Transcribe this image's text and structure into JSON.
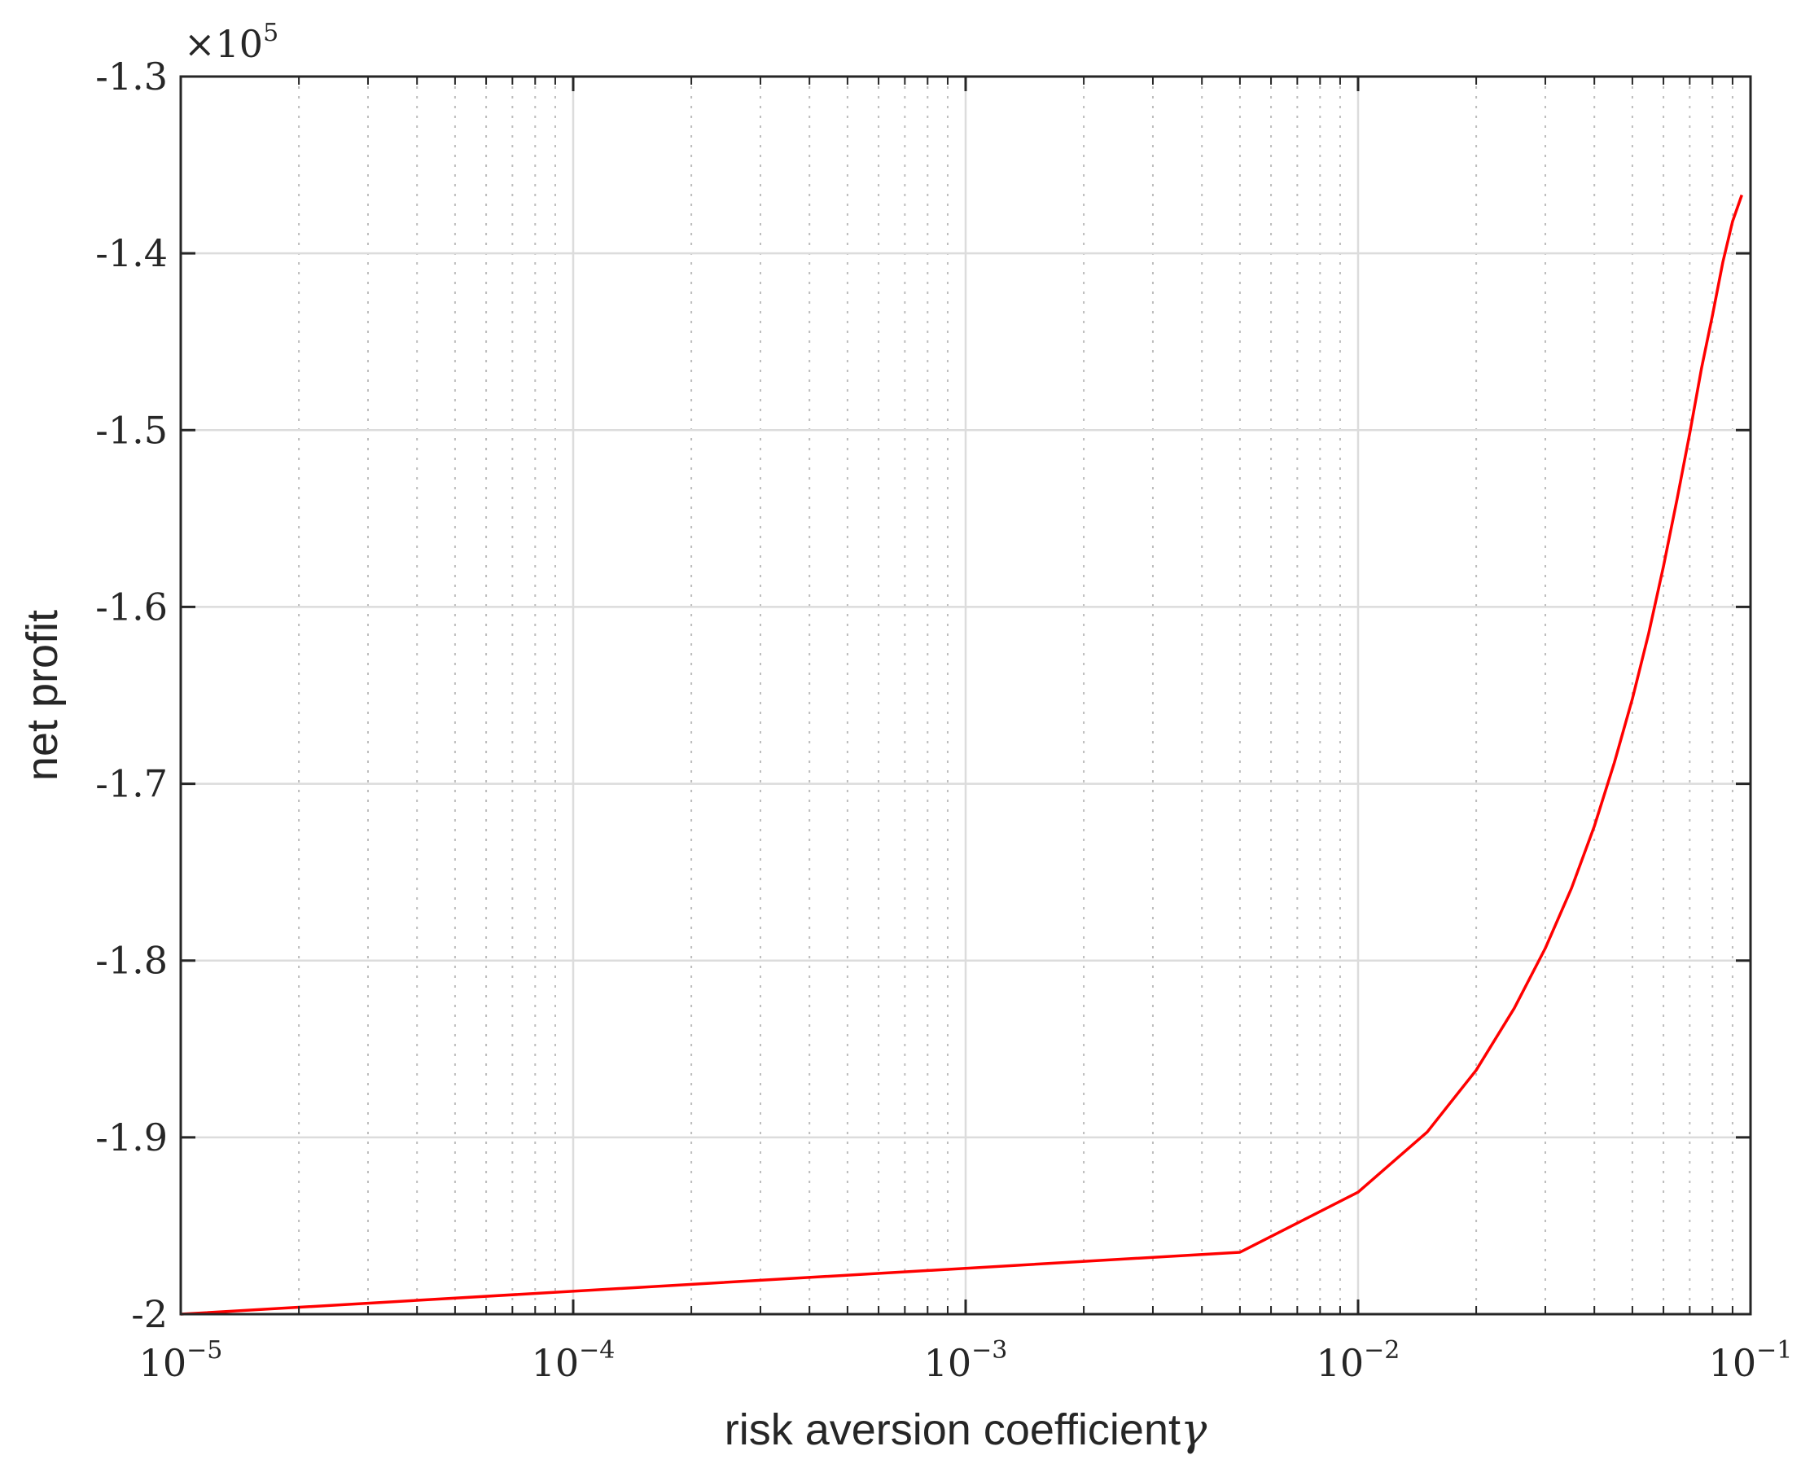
{
  "chart_data": {
    "type": "line",
    "title": "",
    "xlabel": "risk aversion coefficient",
    "xlabel_symbol": "γ",
    "ylabel": "net profit",
    "x_scale": "log",
    "xlim": [
      1e-05,
      0.1
    ],
    "ylim": [
      -200000,
      -130000
    ],
    "y_multiplier_label": "×10",
    "y_multiplier_exponent": "5",
    "x_ticks": [
      {
        "value": 1e-05,
        "base": "10",
        "exp": "−5"
      },
      {
        "value": 0.0001,
        "base": "10",
        "exp": "−4"
      },
      {
        "value": 0.001,
        "base": "10",
        "exp": "−3"
      },
      {
        "value": 0.01,
        "base": "10",
        "exp": "−2"
      },
      {
        "value": 0.1,
        "base": "10",
        "exp": "−1"
      }
    ],
    "y_ticks": [
      {
        "value": -130000,
        "label": "-1.3"
      },
      {
        "value": -140000,
        "label": "-1.4"
      },
      {
        "value": -150000,
        "label": "-1.5"
      },
      {
        "value": -160000,
        "label": "-1.6"
      },
      {
        "value": -170000,
        "label": "-1.7"
      },
      {
        "value": -180000,
        "label": "-1.8"
      },
      {
        "value": -190000,
        "label": "-1.9"
      },
      {
        "value": -200000,
        "label": "-2"
      }
    ],
    "grid": true,
    "minor_grid": true,
    "series": [
      {
        "color": "#ff0000",
        "x": [
          1e-05,
          0.005,
          0.01,
          0.015,
          0.02,
          0.025,
          0.03,
          0.035,
          0.04,
          0.045,
          0.05,
          0.055,
          0.06,
          0.065,
          0.07,
          0.075,
          0.08,
          0.085,
          0.09,
          0.095
        ],
        "y": [
          -200000,
          -196500,
          -193100,
          -189700,
          -186200,
          -182700,
          -179300,
          -175900,
          -172400,
          -168800,
          -165200,
          -161500,
          -157700,
          -153900,
          -150200,
          -146500,
          -143500,
          -140500,
          -138200,
          -136700
        ]
      }
    ]
  }
}
